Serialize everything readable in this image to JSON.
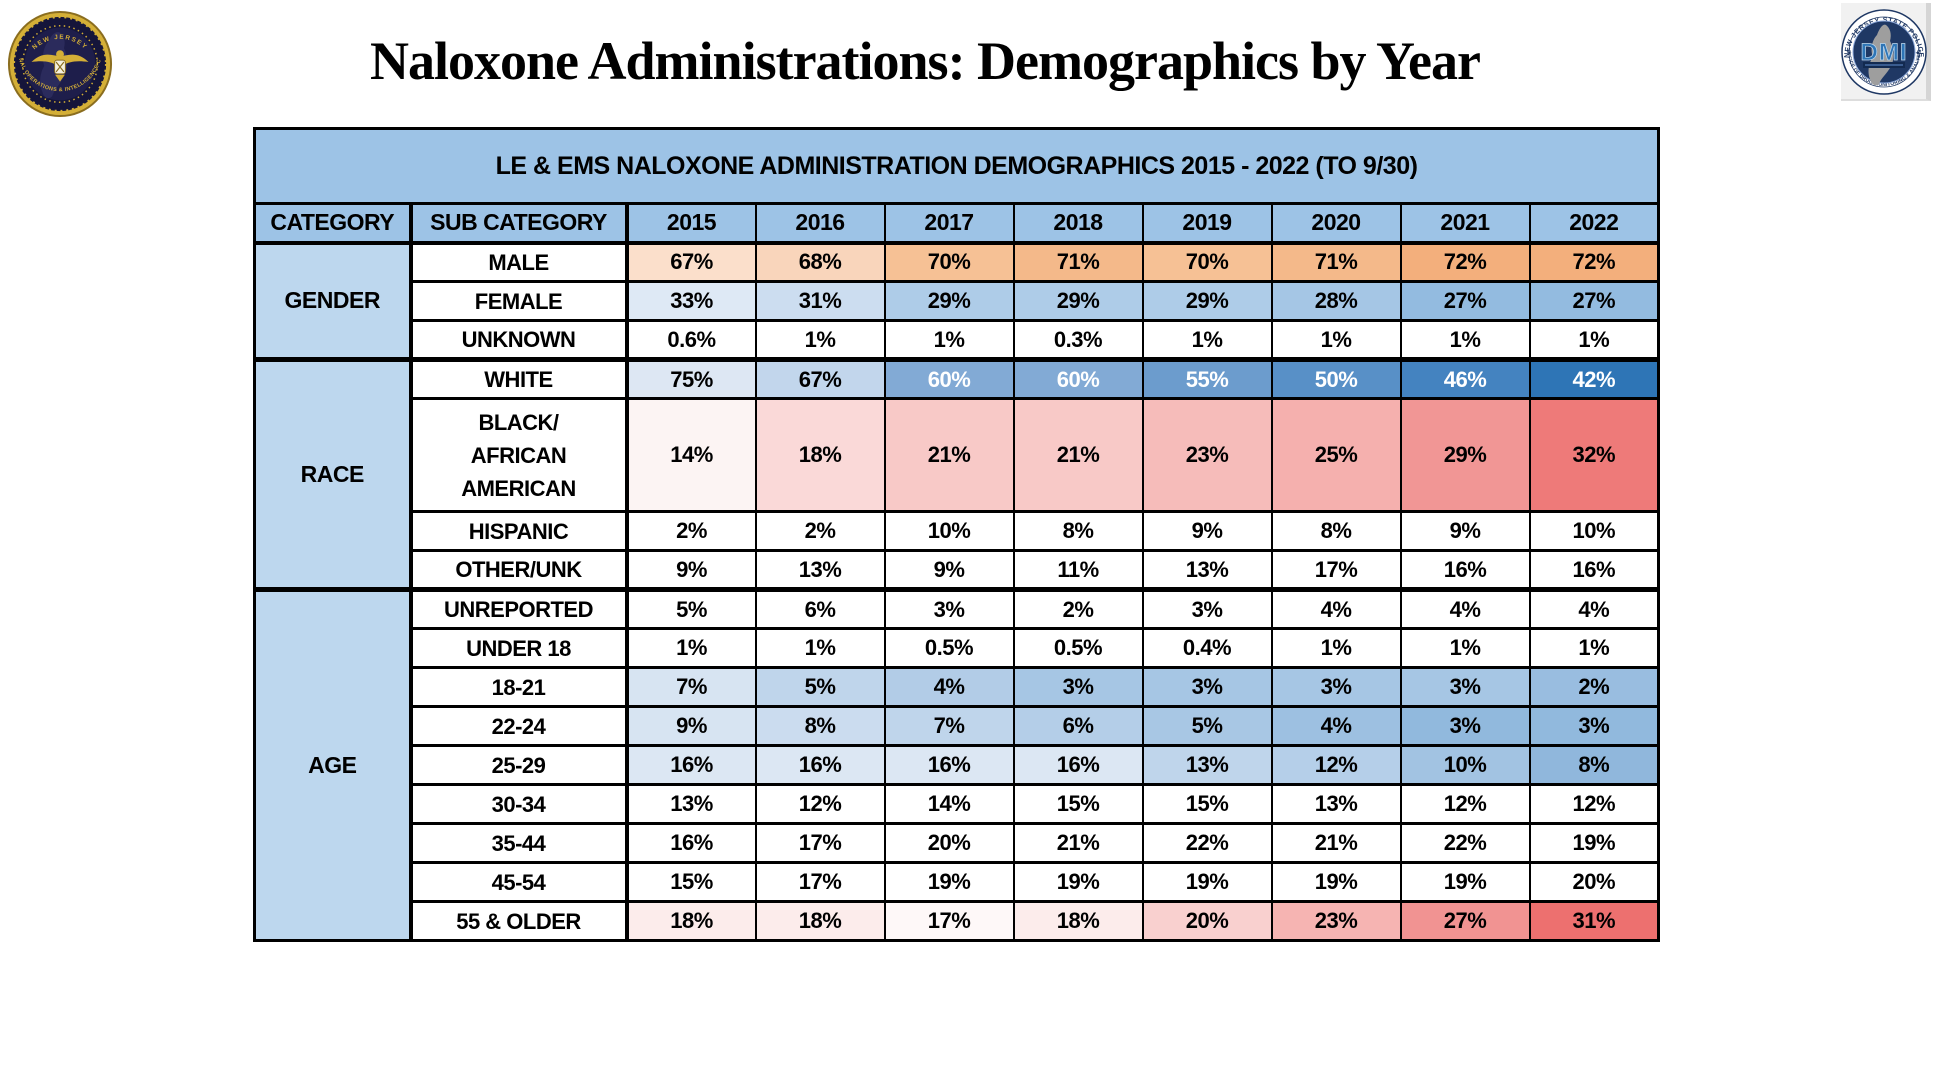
{
  "page_title": "Naloxone Administrations: Demographics by Year",
  "logos": {
    "left": {
      "name": "njroic-seal",
      "arc_top": "NEW JERSEY",
      "arc_bottom": "REGIONAL OPERATIONS & INTELLIGENCE CENTER"
    },
    "right": {
      "name": "dmi-seal",
      "arc_top": "NEW JERSEY STATE POLICE",
      "arc_bottom": "OFFICE OF DRUG MONITORING & ANALYSIS",
      "center": "DMI"
    }
  },
  "colors": {
    "header_bg": "#9DC3E6",
    "category_bg": "#BDD7EE",
    "border": "#000000",
    "seal_navy": "#1F3864",
    "seal_gold": "#C9A227",
    "dmi_blue": "#2E75B6"
  },
  "table": {
    "title": "LE & EMS NALOXONE ADMINISTRATION DEMOGRAPHICS 2015 - 2022 (TO 9/30)",
    "columns": [
      "CATEGORY",
      "SUB CATEGORY",
      "2015",
      "2016",
      "2017",
      "2018",
      "2019",
      "2020",
      "2021",
      "2022"
    ],
    "groups": [
      {
        "category": "GENDER",
        "rows": [
          {
            "sub": "MALE",
            "values": [
              "67%",
              "68%",
              "70%",
              "71%",
              "70%",
              "71%",
              "72%",
              "72%"
            ],
            "bg": [
              "#FBDFCB",
              "#F9D5BB",
              "#F6C195",
              "#F4B98A",
              "#F6C195",
              "#F4B98A",
              "#F3AF7C",
              "#F3AF7C"
            ]
          },
          {
            "sub": "FEMALE",
            "values": [
              "33%",
              "31%",
              "29%",
              "29%",
              "29%",
              "28%",
              "27%",
              "27%"
            ],
            "bg": [
              "#DEE9F5",
              "#CCDDF0",
              "#AECCE8",
              "#AECCE8",
              "#AECCE8",
              "#A5C6E5",
              "#93BBE0",
              "#93BBE0"
            ]
          },
          {
            "sub": "UNKNOWN",
            "values": [
              "0.6%",
              "1%",
              "1%",
              "0.3%",
              "1%",
              "1%",
              "1%",
              "1%"
            ],
            "bg": null
          }
        ]
      },
      {
        "category": "RACE",
        "rows": [
          {
            "sub": "WHITE",
            "values": [
              "75%",
              "67%",
              "60%",
              "60%",
              "55%",
              "50%",
              "46%",
              "42%"
            ],
            "bg": [
              "#DDE7F3",
              "#C2D6EC",
              "#82AAD5",
              "#82AAD5",
              "#6C9CCD",
              "#5890C7",
              "#4483C0",
              "#2E75B6"
            ],
            "fg": [
              "#000000",
              "#000000",
              "#FFFFFF",
              "#FFFFFF",
              "#FFFFFF",
              "#FFFFFF",
              "#FFFFFF",
              "#FFFFFF"
            ]
          },
          {
            "sub": "BLACK/\nAFRICAN\nAMERICAN",
            "tall": true,
            "values": [
              "14%",
              "18%",
              "21%",
              "21%",
              "23%",
              "25%",
              "29%",
              "32%"
            ],
            "bg": [
              "#FCF4F3",
              "#FAD9D8",
              "#F8C9C7",
              "#F8C9C7",
              "#F6BCBA",
              "#F5B0AE",
              "#F19695",
              "#EE7A79"
            ]
          },
          {
            "sub": "HISPANIC",
            "values": [
              "2%",
              "2%",
              "10%",
              "8%",
              "9%",
              "8%",
              "9%",
              "10%"
            ],
            "bg": null
          },
          {
            "sub": "OTHER/UNK",
            "values": [
              "9%",
              "13%",
              "9%",
              "11%",
              "13%",
              "17%",
              "16%",
              "16%"
            ],
            "bg": null
          }
        ]
      },
      {
        "category": "AGE",
        "rows": [
          {
            "sub": "UNREPORTED",
            "values": [
              "5%",
              "6%",
              "3%",
              "2%",
              "3%",
              "4%",
              "4%",
              "4%"
            ],
            "bg": null
          },
          {
            "sub": "UNDER 18",
            "values": [
              "1%",
              "1%",
              "0.5%",
              "0.5%",
              "0.4%",
              "1%",
              "1%",
              "1%"
            ],
            "bg": null
          },
          {
            "sub": "18-21",
            "values": [
              "7%",
              "5%",
              "4%",
              "3%",
              "3%",
              "3%",
              "3%",
              "2%"
            ],
            "bg": [
              "#D7E4F2",
              "#BFD5EB",
              "#B2CCE7",
              "#A6C6E4",
              "#A6C6E4",
              "#A6C6E4",
              "#A6C6E4",
              "#99BDE0"
            ]
          },
          {
            "sub": "22-24",
            "values": [
              "9%",
              "8%",
              "7%",
              "6%",
              "5%",
              "4%",
              "3%",
              "3%"
            ],
            "bg": [
              "#D7E4F2",
              "#CBDCEF",
              "#BFD5EB",
              "#B4CEE8",
              "#A8C7E4",
              "#9DC0E1",
              "#91B9DD",
              "#91B9DD"
            ]
          },
          {
            "sub": "25-29",
            "values": [
              "16%",
              "16%",
              "16%",
              "16%",
              "13%",
              "12%",
              "10%",
              "8%"
            ],
            "bg": [
              "#DCE7F3",
              "#DCE7F3",
              "#DCE7F3",
              "#DCE7F3",
              "#BFD5EB",
              "#B5CFE9",
              "#A2C3E2",
              "#90B7DC"
            ]
          },
          {
            "sub": "30-34",
            "values": [
              "13%",
              "12%",
              "14%",
              "15%",
              "15%",
              "13%",
              "12%",
              "12%"
            ],
            "bg": null
          },
          {
            "sub": "35-44",
            "values": [
              "16%",
              "17%",
              "20%",
              "21%",
              "22%",
              "21%",
              "22%",
              "19%"
            ],
            "bg": null
          },
          {
            "sub": "45-54",
            "values": [
              "15%",
              "17%",
              "19%",
              "19%",
              "19%",
              "19%",
              "19%",
              "20%"
            ],
            "bg": null
          },
          {
            "sub": "55 & OLDER",
            "values": [
              "18%",
              "18%",
              "17%",
              "18%",
              "20%",
              "23%",
              "27%",
              "31%"
            ],
            "bg": [
              "#FCECEB",
              "#FCECEB",
              "#FEF8F8",
              "#FCECEB",
              "#F9D0CF",
              "#F6B4B2",
              "#F19392",
              "#ED706F"
            ]
          }
        ]
      }
    ]
  },
  "chart_data": {
    "type": "table",
    "title": "LE & EMS NALOXONE ADMINISTRATION DEMOGRAPHICS 2015 - 2022 (TO 9/30)",
    "x": [
      "2015",
      "2016",
      "2017",
      "2018",
      "2019",
      "2020",
      "2021",
      "2022"
    ],
    "unit": "%",
    "series": [
      {
        "group": "GENDER",
        "name": "MALE",
        "values": [
          67,
          68,
          70,
          71,
          70,
          71,
          72,
          72
        ]
      },
      {
        "group": "GENDER",
        "name": "FEMALE",
        "values": [
          33,
          31,
          29,
          29,
          29,
          28,
          27,
          27
        ]
      },
      {
        "group": "GENDER",
        "name": "UNKNOWN",
        "values": [
          0.6,
          1,
          1,
          0.3,
          1,
          1,
          1,
          1
        ]
      },
      {
        "group": "RACE",
        "name": "WHITE",
        "values": [
          75,
          67,
          60,
          60,
          55,
          50,
          46,
          42
        ]
      },
      {
        "group": "RACE",
        "name": "BLACK/AFRICAN AMERICAN",
        "values": [
          14,
          18,
          21,
          21,
          23,
          25,
          29,
          32
        ]
      },
      {
        "group": "RACE",
        "name": "HISPANIC",
        "values": [
          2,
          2,
          10,
          8,
          9,
          8,
          9,
          10
        ]
      },
      {
        "group": "RACE",
        "name": "OTHER/UNK",
        "values": [
          9,
          13,
          9,
          11,
          13,
          17,
          16,
          16
        ]
      },
      {
        "group": "AGE",
        "name": "UNREPORTED",
        "values": [
          5,
          6,
          3,
          2,
          3,
          4,
          4,
          4
        ]
      },
      {
        "group": "AGE",
        "name": "UNDER 18",
        "values": [
          1,
          1,
          0.5,
          0.5,
          0.4,
          1,
          1,
          1
        ]
      },
      {
        "group": "AGE",
        "name": "18-21",
        "values": [
          7,
          5,
          4,
          3,
          3,
          3,
          3,
          2
        ]
      },
      {
        "group": "AGE",
        "name": "22-24",
        "values": [
          9,
          8,
          7,
          6,
          5,
          4,
          3,
          3
        ]
      },
      {
        "group": "AGE",
        "name": "25-29",
        "values": [
          16,
          16,
          16,
          16,
          13,
          12,
          10,
          8
        ]
      },
      {
        "group": "AGE",
        "name": "30-34",
        "values": [
          13,
          12,
          14,
          15,
          15,
          13,
          12,
          12
        ]
      },
      {
        "group": "AGE",
        "name": "35-44",
        "values": [
          16,
          17,
          20,
          21,
          22,
          21,
          22,
          19
        ]
      },
      {
        "group": "AGE",
        "name": "45-54",
        "values": [
          15,
          17,
          19,
          19,
          19,
          19,
          19,
          20
        ]
      },
      {
        "group": "AGE",
        "name": "55 & OLDER",
        "values": [
          18,
          18,
          17,
          18,
          20,
          23,
          27,
          31
        ]
      }
    ],
    "layout": {
      "heatmap": "row-wise conditional formatting; increasing trends shaded red/orange, decreasing shaded blue"
    }
  }
}
